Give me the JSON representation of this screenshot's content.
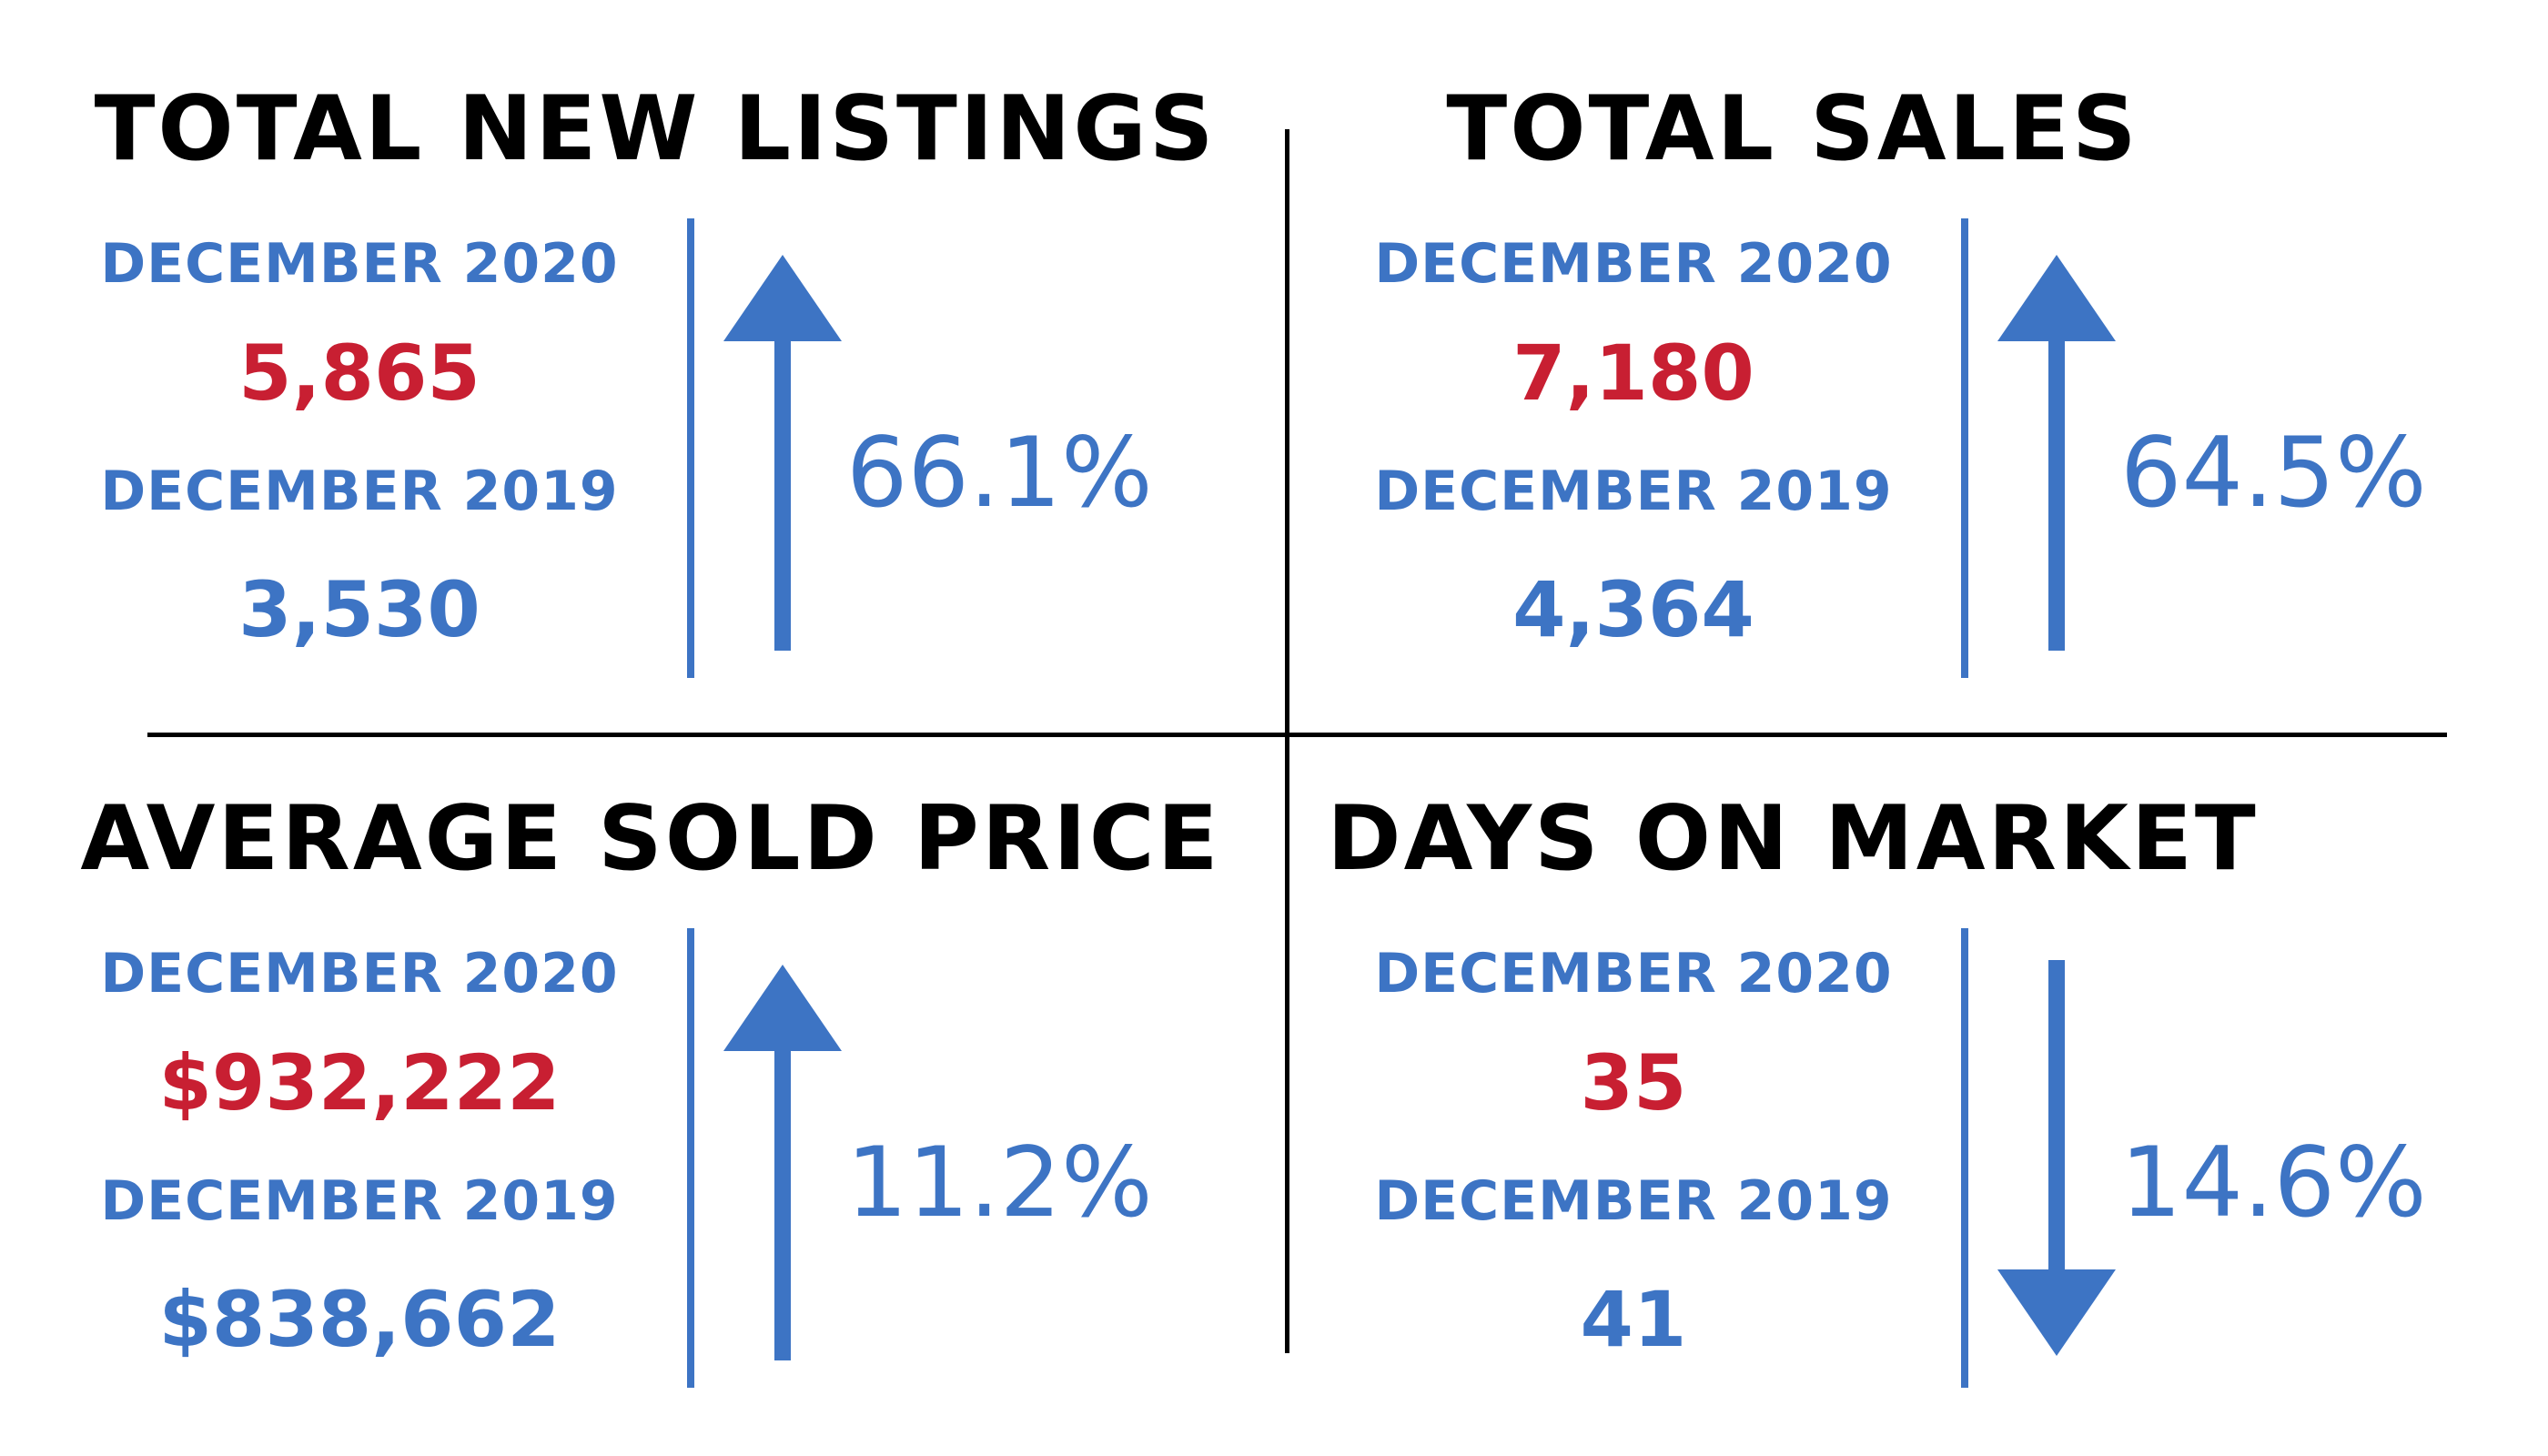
{
  "colors": {
    "title": "#000000",
    "label_blue": "#3d74c4",
    "current_red": "#c81f32",
    "previous_blue": "#3d74c4",
    "arrow_blue": "#3d74c4",
    "divider": "#000000"
  },
  "total_new_listings": {
    "title": "TOTAL NEW LISTINGS",
    "current_label": "DECEMBER 2020",
    "current_value": "5,865",
    "previous_label": "DECEMBER 2019",
    "previous_value": "3,530",
    "change": "66.1%",
    "direction": "up",
    "arrow_icon": "arrow-up-icon"
  },
  "total_sales": {
    "title": "TOTAL SALES",
    "current_label": "DECEMBER 2020",
    "current_value": "7,180",
    "previous_label": "DECEMBER 2019",
    "previous_value": "4,364",
    "change": "64.5%",
    "direction": "up",
    "arrow_icon": "arrow-up-icon"
  },
  "average_sold_price": {
    "title": "AVERAGE SOLD PRICE",
    "current_label": "DECEMBER 2020",
    "current_value": "$932,222",
    "previous_label": "DECEMBER 2019",
    "previous_value": "$838,662",
    "change": "11.2%",
    "direction": "up",
    "arrow_icon": "arrow-up-icon"
  },
  "days_on_market": {
    "title": "DAYS ON MARKET",
    "current_label": "DECEMBER 2020",
    "current_value": "35",
    "previous_label": "DECEMBER 2019",
    "previous_value": "41",
    "change": "14.6%",
    "direction": "down",
    "arrow_icon": "arrow-down-icon"
  }
}
